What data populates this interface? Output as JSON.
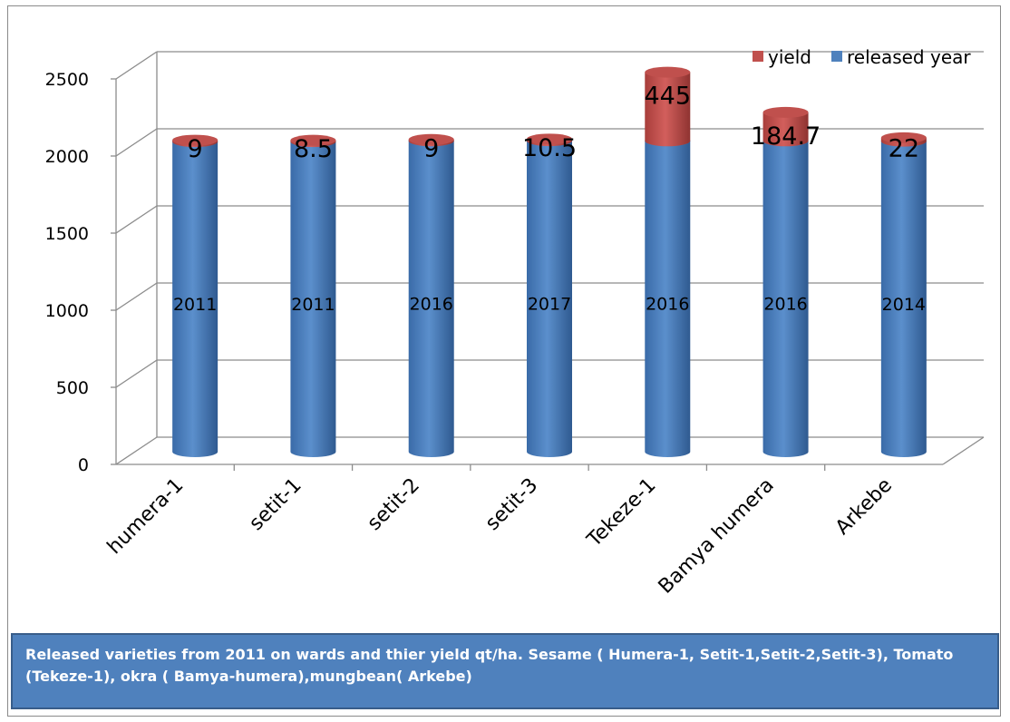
{
  "chart_data": {
    "type": "bar",
    "stacked": true,
    "style": "3d-cylinder",
    "categories": [
      "humera-1",
      "setit-1",
      "setit-2",
      "setit-3",
      "Tekeze-1",
      "Bamya humera",
      "Arkebe"
    ],
    "series": [
      {
        "name": "released year",
        "color": "#4f81bd",
        "values": [
          2011,
          2011,
          2016,
          2017,
          2016,
          2016,
          2014
        ],
        "labels": [
          "2011",
          "2011",
          "2016",
          "2017",
          "2016",
          "2016",
          "2014"
        ]
      },
      {
        "name": "yield",
        "color": "#c0504d",
        "values": [
          9,
          8.5,
          9,
          10.5,
          445,
          184.7,
          22
        ],
        "labels": [
          "9",
          "8.5",
          "9",
          "10.5",
          "445",
          "184.7",
          "22"
        ]
      }
    ],
    "ylim": [
      0,
      2500
    ],
    "yticks": [
      0,
      500,
      1000,
      1500,
      2000,
      2500
    ],
    "ytick_labels": [
      "0",
      "500",
      "1000",
      "1500",
      "2000",
      "2500"
    ],
    "grid": true,
    "legend_position": "top-right",
    "title": "",
    "xlabel": "",
    "ylabel": ""
  },
  "caption": "Released varieties from 2011 on wards  and thier yield qt/ha. Sesame ( Humera-1, Setit-1,Setit-2,Setit-3), Tomato (Tekeze-1), okra ( Bamya-humera),mungbean( Arkebe)"
}
